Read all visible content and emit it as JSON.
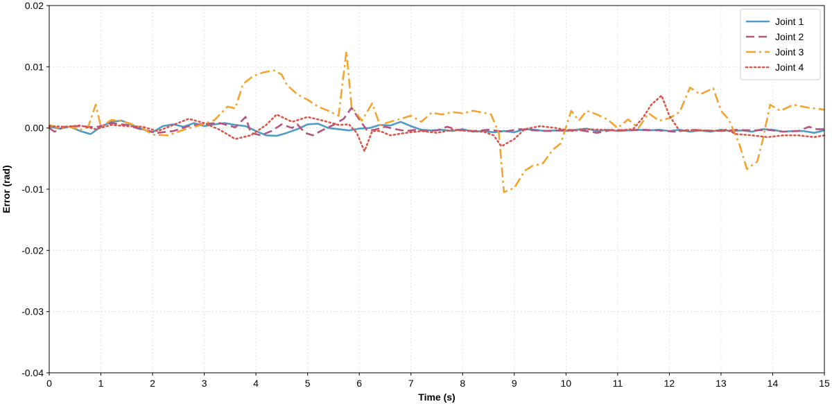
{
  "chart_data": {
    "type": "line",
    "title": "",
    "xlabel": "Time (s)",
    "ylabel": "Error (rad)",
    "xlim": [
      0,
      15
    ],
    "ylim": [
      -0.04,
      0.02
    ],
    "x_ticks": [
      0,
      1,
      2,
      3,
      4,
      5,
      6,
      7,
      8,
      9,
      10,
      11,
      12,
      13,
      14,
      15
    ],
    "x_tick_labels": [
      "0",
      "1",
      "2",
      "3",
      "4",
      "5",
      "6",
      "7",
      "8",
      "9",
      "10",
      "11",
      "12",
      "13",
      "14",
      "15"
    ],
    "y_ticks": [
      -0.04,
      -0.03,
      -0.02,
      -0.01,
      0.0,
      0.01,
      0.02
    ],
    "y_tick_labels": [
      "-0.04",
      "-0.03",
      "-0.02",
      "-0.01",
      "0.00",
      "0.01",
      "0.02"
    ],
    "grid": true,
    "legend_position": "top-right",
    "series": [
      {
        "name": "Joint 1",
        "color": "#4f9bc3",
        "dash": "solid",
        "points": [
          [
            0,
            0.0002
          ],
          [
            0.2,
            -0.0001
          ],
          [
            0.4,
            0.0002
          ],
          [
            0.6,
            -0.0005
          ],
          [
            0.8,
            -0.001
          ],
          [
            1.0,
            0.0002
          ],
          [
            1.2,
            0.001
          ],
          [
            1.4,
            0.0012
          ],
          [
            1.6,
            0.0005
          ],
          [
            1.8,
            -0.0002
          ],
          [
            2.0,
            -0.0007
          ],
          [
            2.2,
            0.0003
          ],
          [
            2.4,
            0.0006
          ],
          [
            2.6,
            0.0002
          ],
          [
            2.8,
            0.0008
          ],
          [
            3.0,
            0.0003
          ],
          [
            3.2,
            0.0006
          ],
          [
            3.4,
            0.0008
          ],
          [
            3.6,
            0.0005
          ],
          [
            3.8,
            0.0003
          ],
          [
            4.0,
            -0.0005
          ],
          [
            4.2,
            -0.0012
          ],
          [
            4.4,
            -0.0013
          ],
          [
            4.6,
            -0.0008
          ],
          [
            4.8,
            -0.0002
          ],
          [
            5.0,
            0.0006
          ],
          [
            5.2,
            0.0007
          ],
          [
            5.4,
            0.0
          ],
          [
            5.6,
            -0.0002
          ],
          [
            5.8,
            -0.0004
          ],
          [
            6.0,
            -0.0001
          ],
          [
            6.2,
            0.0
          ],
          [
            6.4,
            0.0005
          ],
          [
            6.6,
            0.0004
          ],
          [
            6.8,
            0.001
          ],
          [
            7.0,
            0.0003
          ],
          [
            7.2,
            -0.0003
          ],
          [
            7.4,
            -0.0004
          ],
          [
            7.6,
            -0.0003
          ],
          [
            7.8,
            -0.0005
          ],
          [
            8.0,
            -0.0002
          ],
          [
            8.2,
            -0.0006
          ],
          [
            8.4,
            -0.0005
          ],
          [
            8.6,
            -0.0007
          ],
          [
            8.8,
            -0.0005
          ],
          [
            9.0,
            -0.0007
          ],
          [
            9.2,
            -0.0002
          ],
          [
            9.4,
            -0.0003
          ],
          [
            9.6,
            -0.0005
          ],
          [
            9.8,
            -0.0004
          ],
          [
            10.0,
            -0.0005
          ],
          [
            10.2,
            -0.0003
          ],
          [
            10.4,
            -0.0001
          ],
          [
            10.6,
            -0.0005
          ],
          [
            10.8,
            -0.0003
          ],
          [
            11.0,
            -0.0005
          ],
          [
            11.2,
            -0.0004
          ],
          [
            11.4,
            -0.0003
          ],
          [
            11.6,
            -0.0004
          ],
          [
            11.8,
            -0.0003
          ],
          [
            12.0,
            -0.0005
          ],
          [
            12.2,
            -0.0003
          ],
          [
            12.4,
            -0.0006
          ],
          [
            12.6,
            -0.0004
          ],
          [
            12.8,
            -0.0006
          ],
          [
            13.0,
            -0.0003
          ],
          [
            13.2,
            -0.0005
          ],
          [
            13.4,
            -0.0004
          ],
          [
            13.6,
            -0.0006
          ],
          [
            13.8,
            -0.0002
          ],
          [
            14.0,
            -0.0003
          ],
          [
            14.2,
            -0.0006
          ],
          [
            14.4,
            -0.0005
          ],
          [
            14.6,
            -0.0005
          ],
          [
            14.8,
            -0.0008
          ],
          [
            15.0,
            -0.0004
          ]
        ]
      },
      {
        "name": "Joint 2",
        "color": "#b5537f",
        "dash": "dashed",
        "points": [
          [
            0,
            0.0
          ],
          [
            0.1,
            -0.0006
          ],
          [
            0.3,
            0.0002
          ],
          [
            0.6,
            0.0003
          ],
          [
            0.9,
            0.0001
          ],
          [
            1.2,
            0.0008
          ],
          [
            1.5,
            0.0005
          ],
          [
            1.8,
            -0.0003
          ],
          [
            2.1,
            -0.0008
          ],
          [
            2.4,
            -0.0005
          ],
          [
            2.7,
            0.0003
          ],
          [
            3.0,
            0.0007
          ],
          [
            3.3,
            0.0008
          ],
          [
            3.6,
            0.0001
          ],
          [
            3.8,
            0.0018
          ],
          [
            3.9,
            -0.0008
          ],
          [
            4.1,
            -0.0012
          ],
          [
            4.3,
            -0.0005
          ],
          [
            4.5,
            0.0006
          ],
          [
            4.7,
            0.0
          ],
          [
            4.8,
            0.0006
          ],
          [
            4.95,
            -0.0008
          ],
          [
            5.1,
            -0.0012
          ],
          [
            5.3,
            -0.0003
          ],
          [
            5.5,
            0.0005
          ],
          [
            5.7,
            0.0015
          ],
          [
            5.85,
            0.0033
          ],
          [
            6.0,
            0.0014
          ],
          [
            6.15,
            -0.0004
          ],
          [
            6.3,
            -0.0003
          ],
          [
            6.5,
            0.0002
          ],
          [
            6.7,
            -0.0002
          ],
          [
            6.9,
            -0.0005
          ],
          [
            7.1,
            -0.0003
          ],
          [
            7.3,
            -0.0005
          ],
          [
            7.5,
            -0.0004
          ],
          [
            7.7,
            0.0002
          ],
          [
            7.9,
            -0.0003
          ],
          [
            8.2,
            -0.0005
          ],
          [
            8.5,
            -0.0003
          ],
          [
            8.8,
            -0.0006
          ],
          [
            9.1,
            -0.0002
          ],
          [
            9.4,
            -0.0004
          ],
          [
            9.7,
            -0.0005
          ],
          [
            10.0,
            -0.0003
          ],
          [
            10.3,
            -0.0004
          ],
          [
            10.6,
            -0.0008
          ],
          [
            10.9,
            -0.0003
          ],
          [
            11.2,
            -0.0004
          ],
          [
            11.5,
            -0.0003
          ],
          [
            11.8,
            -0.0004
          ],
          [
            12.1,
            -0.0006
          ],
          [
            12.4,
            -0.0003
          ],
          [
            12.7,
            -0.0004
          ],
          [
            13.0,
            -0.0005
          ],
          [
            13.3,
            -0.0003
          ],
          [
            13.6,
            -0.0004
          ],
          [
            13.9,
            -0.0003
          ],
          [
            14.2,
            -0.0006
          ],
          [
            14.5,
            -0.0005
          ],
          [
            14.7,
            0.0002
          ],
          [
            14.85,
            -0.0002
          ],
          [
            15.0,
            -0.0002
          ]
        ]
      },
      {
        "name": "Joint 3",
        "color": "#f5a32c",
        "dash": "dashdot",
        "points": [
          [
            0,
            0.0005
          ],
          [
            0.2,
            0.0
          ],
          [
            0.4,
            0.0002
          ],
          [
            0.6,
            -0.0003
          ],
          [
            0.75,
            0.0001
          ],
          [
            0.9,
            0.0038
          ],
          [
            1.0,
            0.0002
          ],
          [
            1.2,
            0.0013
          ],
          [
            1.4,
            0.0012
          ],
          [
            1.6,
            0.0006
          ],
          [
            1.8,
            0.0
          ],
          [
            2.0,
            -0.0011
          ],
          [
            2.3,
            -0.0012
          ],
          [
            2.6,
            -0.0003
          ],
          [
            2.9,
            0.0004
          ],
          [
            3.2,
            0.0013
          ],
          [
            3.45,
            0.0035
          ],
          [
            3.6,
            0.0032
          ],
          [
            3.75,
            0.0072
          ],
          [
            3.95,
            0.0085
          ],
          [
            4.15,
            0.0091
          ],
          [
            4.35,
            0.0094
          ],
          [
            4.5,
            0.0087
          ],
          [
            4.6,
            0.007
          ],
          [
            4.8,
            0.0055
          ],
          [
            5.0,
            0.0046
          ],
          [
            5.2,
            0.0035
          ],
          [
            5.4,
            0.0028
          ],
          [
            5.6,
            0.002
          ],
          [
            5.75,
            0.0125
          ],
          [
            5.85,
            0.0035
          ],
          [
            6.05,
            0.0012
          ],
          [
            6.25,
            0.004
          ],
          [
            6.4,
            0.0005
          ],
          [
            6.6,
            0.001
          ],
          [
            6.8,
            0.0015
          ],
          [
            7.0,
            0.002
          ],
          [
            7.2,
            0.001
          ],
          [
            7.4,
            0.0025
          ],
          [
            7.6,
            0.0022
          ],
          [
            7.8,
            0.0026
          ],
          [
            8.0,
            0.0024
          ],
          [
            8.2,
            0.0028
          ],
          [
            8.4,
            0.0025
          ],
          [
            8.55,
            0.0022
          ],
          [
            8.7,
            -0.0008
          ],
          [
            8.8,
            -0.0105
          ],
          [
            9.0,
            -0.0098
          ],
          [
            9.2,
            -0.007
          ],
          [
            9.35,
            -0.0062
          ],
          [
            9.55,
            -0.0058
          ],
          [
            9.75,
            -0.0035
          ],
          [
            9.9,
            -0.0025
          ],
          [
            10.1,
            0.0028
          ],
          [
            10.25,
            0.0012
          ],
          [
            10.4,
            0.0028
          ],
          [
            10.6,
            0.0022
          ],
          [
            10.8,
            0.0014
          ],
          [
            11.0,
            0.0
          ],
          [
            11.2,
            0.0014
          ],
          [
            11.4,
            0.0
          ],
          [
            11.6,
            0.0024
          ],
          [
            11.8,
            0.0012
          ],
          [
            12.0,
            0.0016
          ],
          [
            12.2,
            0.0026
          ],
          [
            12.4,
            0.0066
          ],
          [
            12.6,
            0.0055
          ],
          [
            12.85,
            0.0065
          ],
          [
            13.0,
            0.0028
          ],
          [
            13.15,
            0.0014
          ],
          [
            13.35,
            -0.0025
          ],
          [
            13.5,
            -0.0067
          ],
          [
            13.7,
            -0.0055
          ],
          [
            13.8,
            -0.0022
          ],
          [
            13.95,
            0.0038
          ],
          [
            14.15,
            0.0028
          ],
          [
            14.4,
            0.0038
          ],
          [
            14.7,
            0.0033
          ],
          [
            15.0,
            0.003
          ]
        ]
      },
      {
        "name": "Joint 4",
        "color": "#d95547",
        "dash": "dotted",
        "points": [
          [
            0,
            0.0003
          ],
          [
            0.3,
            0.0002
          ],
          [
            0.6,
            0.0004
          ],
          [
            0.9,
            -0.0002
          ],
          [
            1.2,
            0.0005
          ],
          [
            1.5,
            0.0003
          ],
          [
            1.8,
            0.0002
          ],
          [
            2.1,
            -0.0005
          ],
          [
            2.4,
            0.0005
          ],
          [
            2.7,
            0.0015
          ],
          [
            3.0,
            0.0008
          ],
          [
            3.3,
            -0.0003
          ],
          [
            3.6,
            -0.0018
          ],
          [
            3.9,
            -0.0012
          ],
          [
            4.2,
            0.0005
          ],
          [
            4.4,
            0.0022
          ],
          [
            4.7,
            0.001
          ],
          [
            5.0,
            0.0018
          ],
          [
            5.3,
            0.0012
          ],
          [
            5.6,
            0.0005
          ],
          [
            5.8,
            0.0006
          ],
          [
            5.95,
            -0.0008
          ],
          [
            6.1,
            -0.0038
          ],
          [
            6.25,
            -0.0005
          ],
          [
            6.4,
            -0.0005
          ],
          [
            6.6,
            -0.0012
          ],
          [
            6.9,
            -0.0008
          ],
          [
            7.2,
            -0.0005
          ],
          [
            7.5,
            -0.0008
          ],
          [
            7.8,
            -0.0003
          ],
          [
            8.1,
            -0.0005
          ],
          [
            8.4,
            -0.0006
          ],
          [
            8.6,
            -0.0012
          ],
          [
            8.75,
            -0.003
          ],
          [
            9.0,
            -0.0018
          ],
          [
            9.2,
            -0.0002
          ],
          [
            9.5,
            0.0003
          ],
          [
            9.8,
            0.0
          ],
          [
            10.1,
            -0.0005
          ],
          [
            10.4,
            -0.0002
          ],
          [
            10.7,
            -0.0003
          ],
          [
            11.0,
            -0.0004
          ],
          [
            11.3,
            -0.0002
          ],
          [
            11.5,
            0.0018
          ],
          [
            11.65,
            0.0038
          ],
          [
            11.85,
            0.0053
          ],
          [
            12.0,
            0.002
          ],
          [
            12.2,
            -0.0005
          ],
          [
            12.5,
            -0.0003
          ],
          [
            12.8,
            -0.0005
          ],
          [
            13.1,
            -0.0003
          ],
          [
            13.3,
            -0.001
          ],
          [
            13.6,
            -0.0012
          ],
          [
            13.9,
            -0.0015
          ],
          [
            14.2,
            -0.0012
          ],
          [
            14.5,
            -0.0012
          ],
          [
            14.8,
            -0.0015
          ],
          [
            15.0,
            -0.0012
          ]
        ]
      }
    ]
  }
}
